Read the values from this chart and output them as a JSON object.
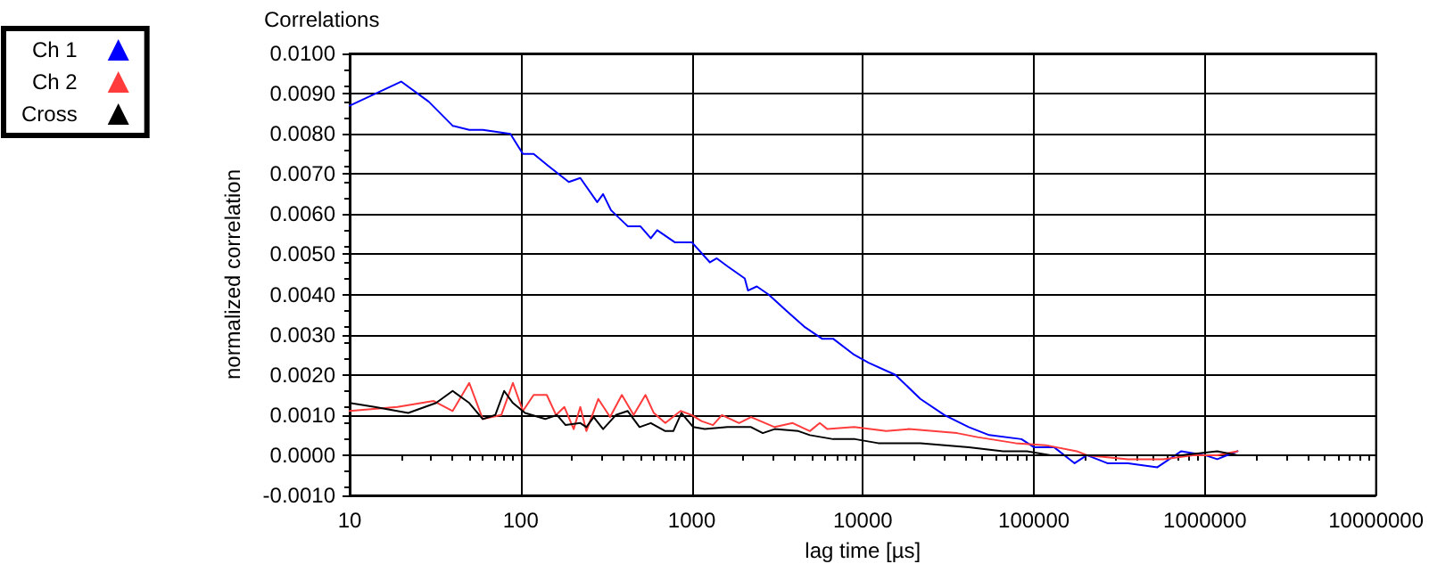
{
  "chart_data": {
    "type": "line",
    "title": "Correlations",
    "xlabel": "lag time [µs]",
    "ylabel": "normalized correlation",
    "log": "x",
    "grid": true,
    "legend": "top left",
    "marker": "none",
    "line_style": "solid",
    "xlim": [
      10,
      10000000
    ],
    "xticks": [
      10,
      100,
      1000,
      10000,
      100000,
      1000000,
      10000000
    ],
    "ylim": [
      -0.001,
      0.01
    ],
    "yticks": [
      {
        "value": -0.001,
        "label": "-0.0010"
      },
      {
        "value": 0,
        "label": "0.0000"
      },
      {
        "value": 0.001,
        "label": "0.0010"
      },
      {
        "value": 0.002,
        "label": "0.0020"
      },
      {
        "value": 0.003,
        "label": "0.0030"
      },
      {
        "value": 0.004,
        "label": "0.0040"
      },
      {
        "value": 0.005,
        "label": "0.0050"
      },
      {
        "value": 0.006,
        "label": "0.0060"
      },
      {
        "value": 0.007,
        "label": "0.0070"
      },
      {
        "value": 0.008,
        "label": "0.0080"
      },
      {
        "value": 0.009,
        "label": "0.0090"
      },
      {
        "value": 0.01,
        "label": "0.0100"
      }
    ],
    "series": [
      {
        "name": "Ch 1",
        "color": "#0000ff",
        "x": [
          10,
          20,
          29,
          40,
          50,
          60,
          87,
          103,
          119,
          145,
          191,
          223,
          280,
          303,
          337,
          422,
          500,
          576,
          628,
          795,
          1000,
          1277,
          1400,
          1620,
          2040,
          2130,
          2400,
          2810,
          3560,
          4540,
          5770,
          6700,
          8900,
          10800,
          15500,
          21700,
          30000,
          41600,
          54800,
          84600,
          100000,
          131000,
          173000,
          204000,
          269000,
          355000,
          527000,
          727000,
          1000000,
          1180000,
          1550000
        ],
        "values": [
          0.0087,
          0.0093,
          0.0088,
          0.0082,
          0.0081,
          0.0081,
          0.008,
          0.0075,
          0.0075,
          0.0072,
          0.0068,
          0.0069,
          0.0063,
          0.0065,
          0.0061,
          0.0057,
          0.0057,
          0.0054,
          0.0056,
          0.0053,
          0.0053,
          0.0048,
          0.0049,
          0.0047,
          0.0044,
          0.0041,
          0.0042,
          0.004,
          0.0036,
          0.0032,
          0.0029,
          0.0029,
          0.0025,
          0.0023,
          0.002,
          0.0014,
          0.001,
          0.0007,
          0.0005,
          0.0004,
          0.0002,
          0.0002,
          -0.0002,
          0,
          -0.0002,
          -0.0002,
          -0.0003,
          0.0001,
          0,
          -0.0001,
          0.0001
        ]
      },
      {
        "name": "Ch 2",
        "color": "#ff3b3b",
        "x": [
          10,
          19,
          31,
          40,
          50,
          60,
          77,
          90,
          103,
          119,
          142,
          161,
          180,
          204,
          223,
          242,
          284,
          333,
          390,
          457,
          536,
          600,
          700,
          860,
          1000,
          1140,
          1330,
          1500,
          1890,
          2220,
          3050,
          3890,
          4900,
          5600,
          6200,
          8900,
          13700,
          18600,
          35500,
          46800,
          78000,
          117000,
          178000,
          204000,
          355000,
          570000,
          850000,
          1180000,
          1550000
        ],
        "values": [
          0.0011,
          0.0012,
          0.00135,
          0.0011,
          0.0018,
          0.0009,
          0.001,
          0.0018,
          0.0011,
          0.0015,
          0.0015,
          0.001,
          0.0012,
          0.00065,
          0.0012,
          0.0006,
          0.0014,
          0.00095,
          0.0015,
          0.001,
          0.0015,
          0.00105,
          0.0008,
          0.0011,
          0.001,
          0.00085,
          0.00075,
          0.001,
          0.0008,
          0.00095,
          0.0007,
          0.0008,
          0.0006,
          0.0008,
          0.00065,
          0.0007,
          0.0006,
          0.00065,
          0.00055,
          0.00045,
          0.0003,
          0.00025,
          0.0001,
          0,
          -0.0001,
          -0.0001,
          0,
          0,
          0.0001
        ]
      },
      {
        "name": "Cross",
        "color": "#000000",
        "x": [
          10,
          14,
          22,
          32,
          40,
          50,
          60,
          71,
          80,
          90,
          106,
          139,
          163,
          183,
          223,
          242,
          267,
          303,
          360,
          422,
          495,
          576,
          700,
          780,
          870,
          1020,
          1190,
          1620,
          2220,
          2600,
          3050,
          4200,
          4900,
          6700,
          9000,
          12300,
          17000,
          21700,
          41600,
          66000,
          91000,
          125000,
          236000,
          380000,
          727000,
          1180000,
          1550000
        ],
        "values": [
          0.0013,
          0.0012,
          0.00105,
          0.0013,
          0.0016,
          0.0013,
          0.0009,
          0.001,
          0.0016,
          0.0013,
          0.00105,
          0.0009,
          0.001,
          0.00075,
          0.0008,
          0.0007,
          0.00095,
          0.00065,
          0.001,
          0.0011,
          0.0007,
          0.0008,
          0.0006,
          0.0006,
          0.00105,
          0.0007,
          0.00065,
          0.0007,
          0.0007,
          0.00055,
          0.00065,
          0.0006,
          0.0005,
          0.0004,
          0.0004,
          0.0003,
          0.0003,
          0.0003,
          0.0002,
          0.0001,
          0.0001,
          0,
          0,
          0,
          0,
          0.0001,
          0
        ]
      }
    ]
  }
}
